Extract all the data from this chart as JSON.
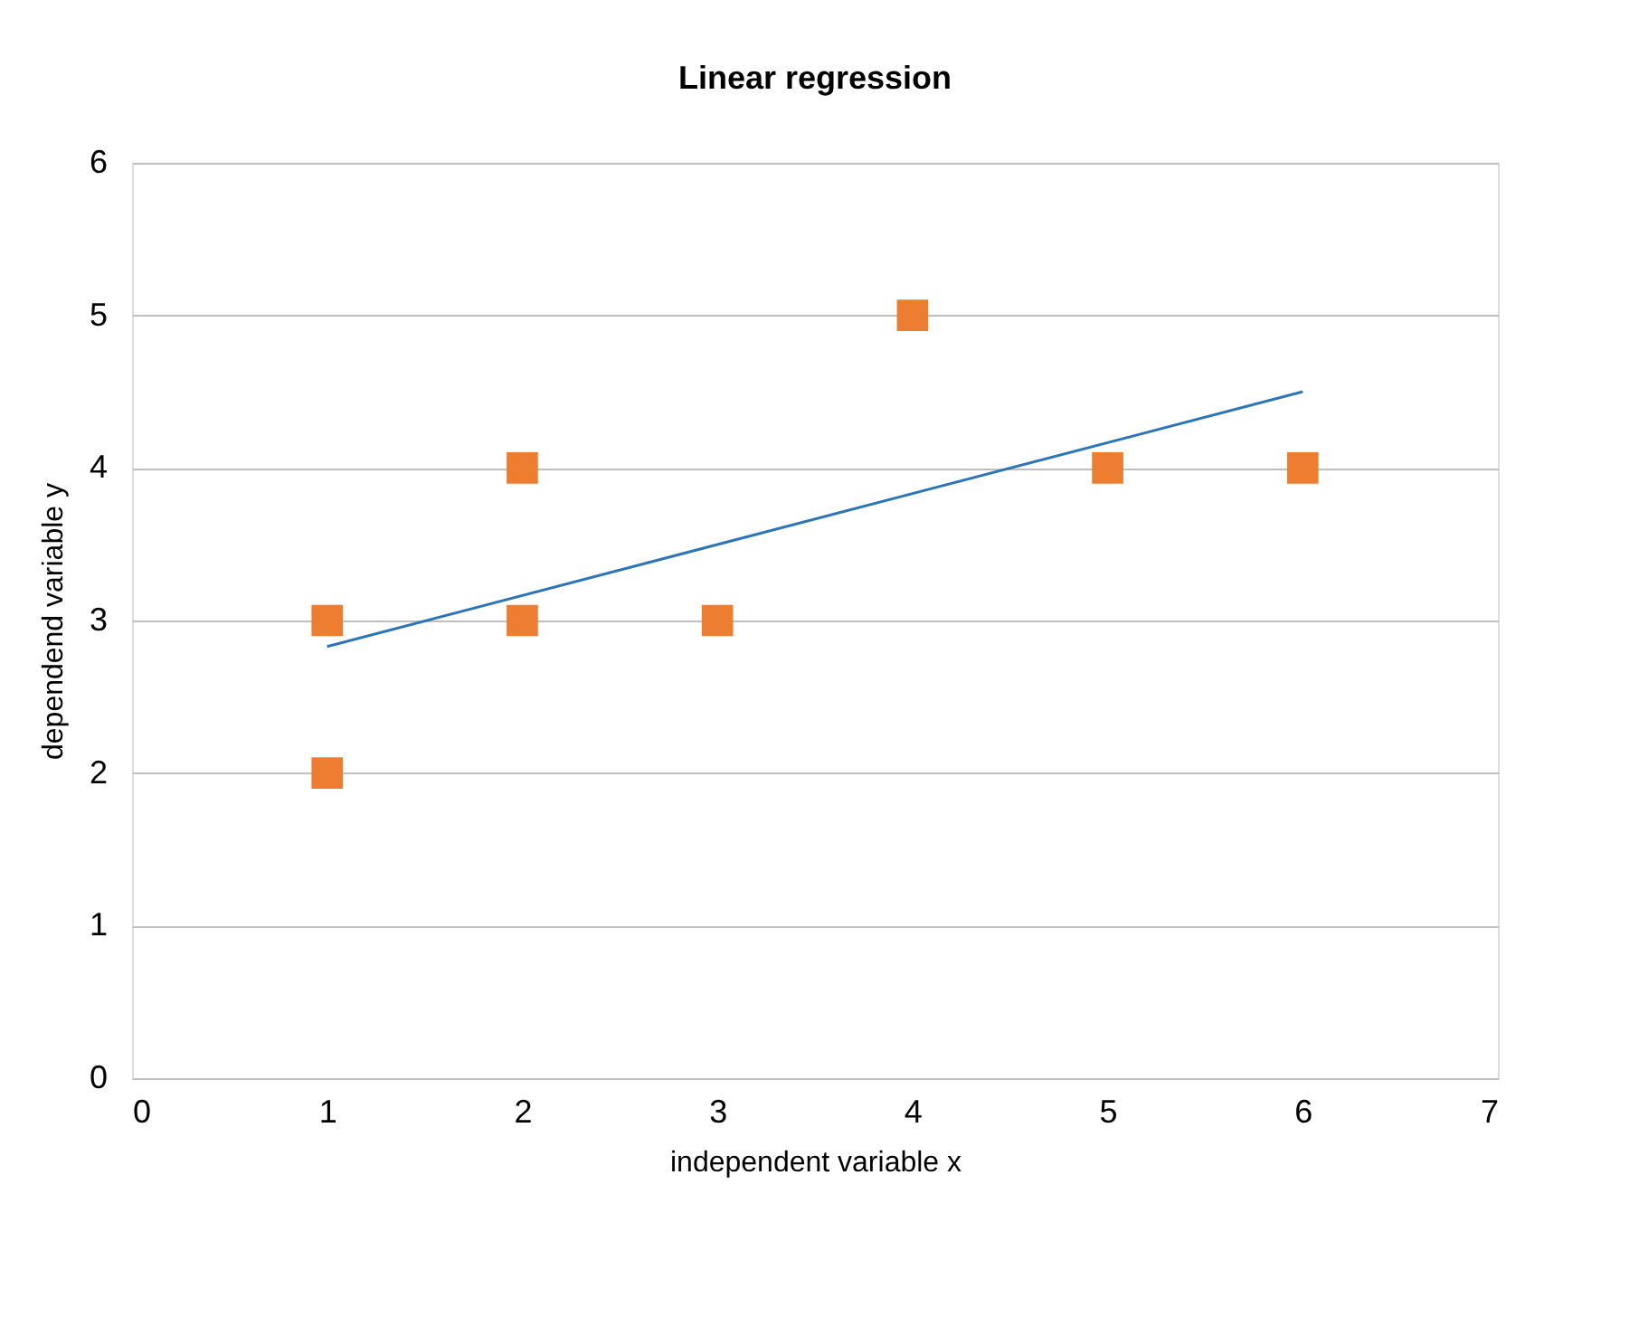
{
  "chart_data": {
    "type": "scatter",
    "title": "Linear regression",
    "xlabel": "independent variable x",
    "ylabel": "dependend variable y",
    "series": [
      {
        "color": "#ed7d31",
        "marker": "square",
        "x": [
          1,
          1,
          2,
          2,
          3,
          4,
          5,
          6
        ],
        "values": [
          3,
          2,
          4,
          3,
          3,
          5,
          4,
          4
        ]
      },
      {
        "type": "line",
        "color": "#2e75b6",
        "marker": "none",
        "line_style": "solid",
        "x": [
          1,
          6
        ],
        "values": [
          2.83,
          4.5
        ]
      }
    ],
    "xlim": [
      0,
      7
    ],
    "xticks": [
      0,
      1,
      2,
      3,
      4,
      5,
      6,
      7
    ],
    "ylim": [
      0,
      6
    ],
    "yticks": [
      0,
      1,
      2,
      3,
      4,
      5,
      6
    ],
    "grid": "y",
    "legend": false
  }
}
